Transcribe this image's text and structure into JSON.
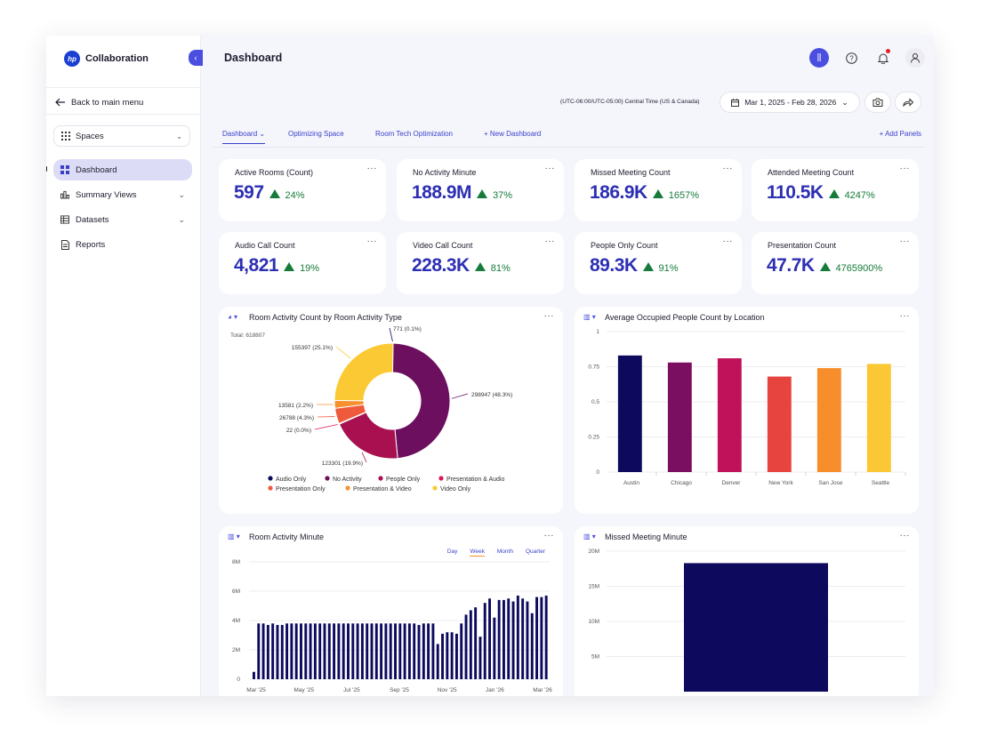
{
  "app": {
    "brand_logo": "hp",
    "brand_name": "Collaboration"
  },
  "sidebar": {
    "back_label": "Back to main menu",
    "spaces_label": "Spaces",
    "items": [
      {
        "label": "Dashboard",
        "icon": "grid-icon",
        "active": true
      },
      {
        "label": "Summary Views",
        "icon": "bar-chart-icon",
        "expandable": true
      },
      {
        "label": "Datasets",
        "icon": "table-icon",
        "expandable": true
      },
      {
        "label": "Reports",
        "icon": "report-icon"
      }
    ]
  },
  "header": {
    "title": "Dashboard"
  },
  "toolbar": {
    "timezone": "(UTC-06:00/UTC-05:00) Central Time (US & Canada)",
    "date_range": "Mar 1, 2025 - Feb 28, 2026"
  },
  "tabs": {
    "items": [
      "Dashboard",
      "Optimizing Space",
      "Room Tech Optimization",
      "+ New Dashboard"
    ],
    "add_panels": "+ Add Panels"
  },
  "kpis": [
    {
      "title": "Active Rooms (Count)",
      "value": "597",
      "change": "24%"
    },
    {
      "title": "No Activity Minute",
      "value": "188.9M",
      "change": "37%"
    },
    {
      "title": "Missed Meeting Count",
      "value": "186.9K",
      "change": "1657%"
    },
    {
      "title": "Attended Meeting Count",
      "value": "110.5K",
      "change": "4247%"
    },
    {
      "title": "Audio Call Count",
      "value": "4,821",
      "change": "19%"
    },
    {
      "title": "Video Call Count",
      "value": "228.3K",
      "change": "81%"
    },
    {
      "title": "People Only Count",
      "value": "89.3K",
      "change": "91%"
    },
    {
      "title": "Presentation Count",
      "value": "47.7K",
      "change": "4765900%"
    }
  ],
  "colors": {
    "accent": "#4b4fe0",
    "kpi_value": "#2d2fb3",
    "positive": "#167a3a"
  },
  "chart_data": [
    {
      "type": "pie",
      "title": "Room Activity Count by Room Activity Type",
      "total_label": "Total: 618807",
      "slices": [
        {
          "name": "Audio Only",
          "value": 771,
          "label": "771 (0.1%)",
          "color": "#0d0a5e"
        },
        {
          "name": "No Activity",
          "value": 298947,
          "label": "298947 (48.3%)",
          "color": "#6b0f5e"
        },
        {
          "name": "People Only",
          "value": 123301,
          "label": "123301 (19.9%)",
          "color": "#a8104f"
        },
        {
          "name": "Presentation & Audio",
          "value": 22,
          "label": "22 (0.0%)",
          "color": "#d81b52"
        },
        {
          "name": "Presentation Only",
          "value": 26788,
          "label": "26788 (4.3%)",
          "color": "#ef5a3c"
        },
        {
          "name": "Presentation & Video",
          "value": 13581,
          "label": "13581 (2.2%)",
          "color": "#f7902f"
        },
        {
          "name": "Video Only",
          "value": 155397,
          "label": "155397 (25.1%)",
          "color": "#fbc934"
        }
      ]
    },
    {
      "type": "bar",
      "title": "Average Occupied People Count by Location",
      "categories": [
        "Austin",
        "Chicago",
        "Denver",
        "New York",
        "San Jose",
        "Seattle"
      ],
      "values": [
        0.83,
        0.78,
        0.81,
        0.68,
        0.74,
        0.77
      ],
      "colors": [
        "#0d0a5e",
        "#7a0f62",
        "#c0125a",
        "#e8443f",
        "#f88d2c",
        "#fcc734"
      ],
      "yticks": [
        "1",
        "0.75",
        "0.5",
        "0.25",
        "0"
      ],
      "ylim": [
        0,
        1
      ]
    },
    {
      "type": "bar",
      "title": "Room Activity Minute",
      "granularity_options": [
        "Day",
        "Week",
        "Month",
        "Quarter"
      ],
      "selected_granularity": "Week",
      "x_tick_labels": [
        "Mar '25",
        "May '25",
        "Jul '25",
        "Sep '25",
        "Nov '25",
        "Jan '26",
        "Mar '26"
      ],
      "y_tick_labels": [
        "8M",
        "6M",
        "4M",
        "2M",
        "0"
      ],
      "ylim": [
        0,
        8000000
      ],
      "values": [
        500000,
        3800000,
        3800000,
        3700000,
        3800000,
        3700000,
        3700000,
        3800000,
        3800000,
        3800000,
        3800000,
        3800000,
        3800000,
        3800000,
        3800000,
        3800000,
        3800000,
        3800000,
        3800000,
        3800000,
        3800000,
        3800000,
        3800000,
        3800000,
        3800000,
        3800000,
        3800000,
        3800000,
        3800000,
        3800000,
        3800000,
        3800000,
        3800000,
        3800000,
        3800000,
        3700000,
        3800000,
        3800000,
        3800000,
        2400000,
        3100000,
        3200000,
        3200000,
        3100000,
        3800000,
        4400000,
        4700000,
        4900000,
        2900000,
        5200000,
        5500000,
        4200000,
        5400000,
        5400000,
        5500000,
        5300000,
        5700000,
        5500000,
        5300000,
        4500000,
        5600000,
        5600000,
        5700000
      ]
    },
    {
      "type": "bar",
      "title": "Missed Meeting Minute",
      "y_tick_labels": [
        "20M",
        "15M",
        "10M",
        "5M"
      ],
      "ylim": [
        0,
        20000000
      ],
      "values": [
        18300000
      ],
      "color": "#0d0a5e"
    }
  ]
}
